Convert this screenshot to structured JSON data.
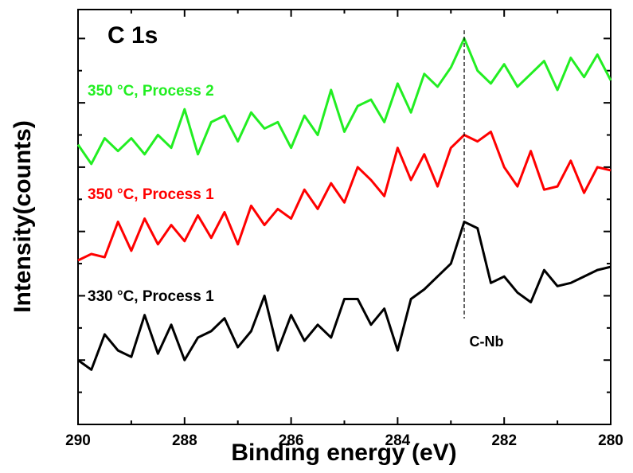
{
  "chart_data": {
    "type": "line",
    "title": "C 1s",
    "x_label": "Binding energy (eV)",
    "y_label": "Intensity(counts)",
    "xlim": [
      290,
      280
    ],
    "ylim": [
      0,
      12.9
    ],
    "xticks": [
      290,
      288,
      286,
      284,
      282,
      280
    ],
    "xticks_minor": [
      289,
      287,
      285,
      283,
      281
    ],
    "yticks": [
      2,
      4,
      6,
      8,
      10,
      12
    ],
    "yticks_minor": [
      1,
      3,
      5,
      7,
      9,
      11
    ],
    "x": [
      290,
      289.75,
      289.5,
      289.25,
      289,
      288.75,
      288.5,
      288.25,
      288,
      287.75,
      287.5,
      287.25,
      287,
      286.75,
      286.5,
      286.25,
      286,
      285.75,
      285.5,
      285.25,
      285,
      284.75,
      284.5,
      284.25,
      284,
      283.75,
      283.5,
      283.25,
      283,
      282.75,
      282.5,
      282.25,
      282,
      281.75,
      281.5,
      281.25,
      281,
      280.75,
      280.5,
      280.25,
      280
    ],
    "series": [
      {
        "name": "330 °C, Process 1",
        "color": "#000000",
        "values": [
          2.0,
          1.7,
          2.8,
          2.3,
          2.1,
          3.4,
          2.2,
          3.1,
          2.0,
          2.7,
          2.9,
          3.3,
          2.4,
          2.9,
          4.0,
          2.3,
          3.4,
          2.6,
          3.1,
          2.7,
          3.9,
          3.9,
          3.1,
          3.6,
          2.3,
          3.9,
          4.2,
          4.6,
          5.0,
          6.3,
          6.1,
          4.4,
          4.6,
          4.1,
          3.8,
          4.8,
          4.3,
          4.4,
          4.6,
          4.8,
          4.9
        ]
      },
      {
        "name": "350 °C, Process 1",
        "color": "#ff0000",
        "values": [
          5.1,
          5.3,
          5.2,
          6.3,
          5.4,
          6.4,
          5.6,
          6.2,
          5.7,
          6.5,
          5.8,
          6.6,
          5.6,
          6.8,
          6.2,
          6.7,
          6.4,
          7.3,
          6.7,
          7.5,
          6.9,
          8.0,
          7.6,
          7.1,
          8.6,
          7.6,
          8.4,
          7.4,
          8.6,
          9.0,
          8.8,
          9.1,
          8.0,
          7.4,
          8.5,
          7.3,
          7.4,
          8.2,
          7.2,
          8.0,
          7.9
        ]
      },
      {
        "name": "350 °C, Process 2",
        "color": "#22ee22",
        "values": [
          8.7,
          8.1,
          8.9,
          8.5,
          8.9,
          8.4,
          9.0,
          8.6,
          9.8,
          8.4,
          9.4,
          9.6,
          8.8,
          9.7,
          9.2,
          9.4,
          8.6,
          9.6,
          9.0,
          10.4,
          9.1,
          9.9,
          10.1,
          9.4,
          10.6,
          9.7,
          10.9,
          10.5,
          11.1,
          12.0,
          11.0,
          10.6,
          11.2,
          10.5,
          10.9,
          11.3,
          10.4,
          11.4,
          10.8,
          11.5,
          10.7
        ]
      }
    ],
    "annotations": [
      {
        "text": "C-Nb",
        "x": 282.75
      }
    ]
  }
}
